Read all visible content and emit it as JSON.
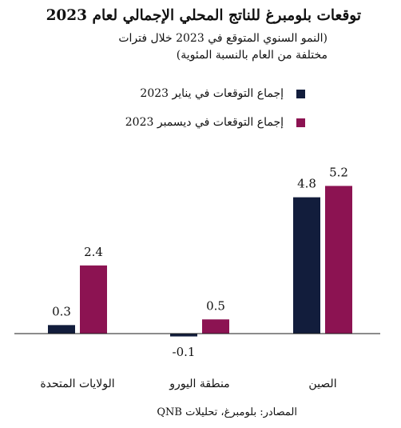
{
  "header": {
    "title": "توقعات بلومبرغ للناتج المحلي الإجمالي لعام 2023",
    "subtitle_line1": "(النمو السنوي المتوقع في 2023 خلال فترات",
    "subtitle_line2": "مختلفة من العام بالنسبة المئوية)"
  },
  "colors": {
    "january": "#121d3c",
    "december": "#8c1352",
    "axis": "#1a1a1a"
  },
  "chart_data": {
    "type": "bar",
    "categories": [
      "الصين",
      "منطقة اليورو",
      "الولايات المتحدة"
    ],
    "series": [
      {
        "name": "إجماع التوقعات في يناير 2023",
        "values": [
          4.8,
          -0.1,
          0.3
        ],
        "value_labels": [
          "4.8",
          "-0.1",
          "0.3"
        ]
      },
      {
        "name": "إجماع التوقعات في ديسمبر 2023",
        "values": [
          5.2,
          0.5,
          2.4
        ],
        "value_labels": [
          "5.2",
          "0.5",
          "2.4"
        ]
      }
    ],
    "ylim": [
      -0.6,
      6.5
    ],
    "grid": false,
    "legend": "top"
  },
  "footer": {
    "source": "المصادر: بلومبرغ، تحليلات QNB"
  }
}
